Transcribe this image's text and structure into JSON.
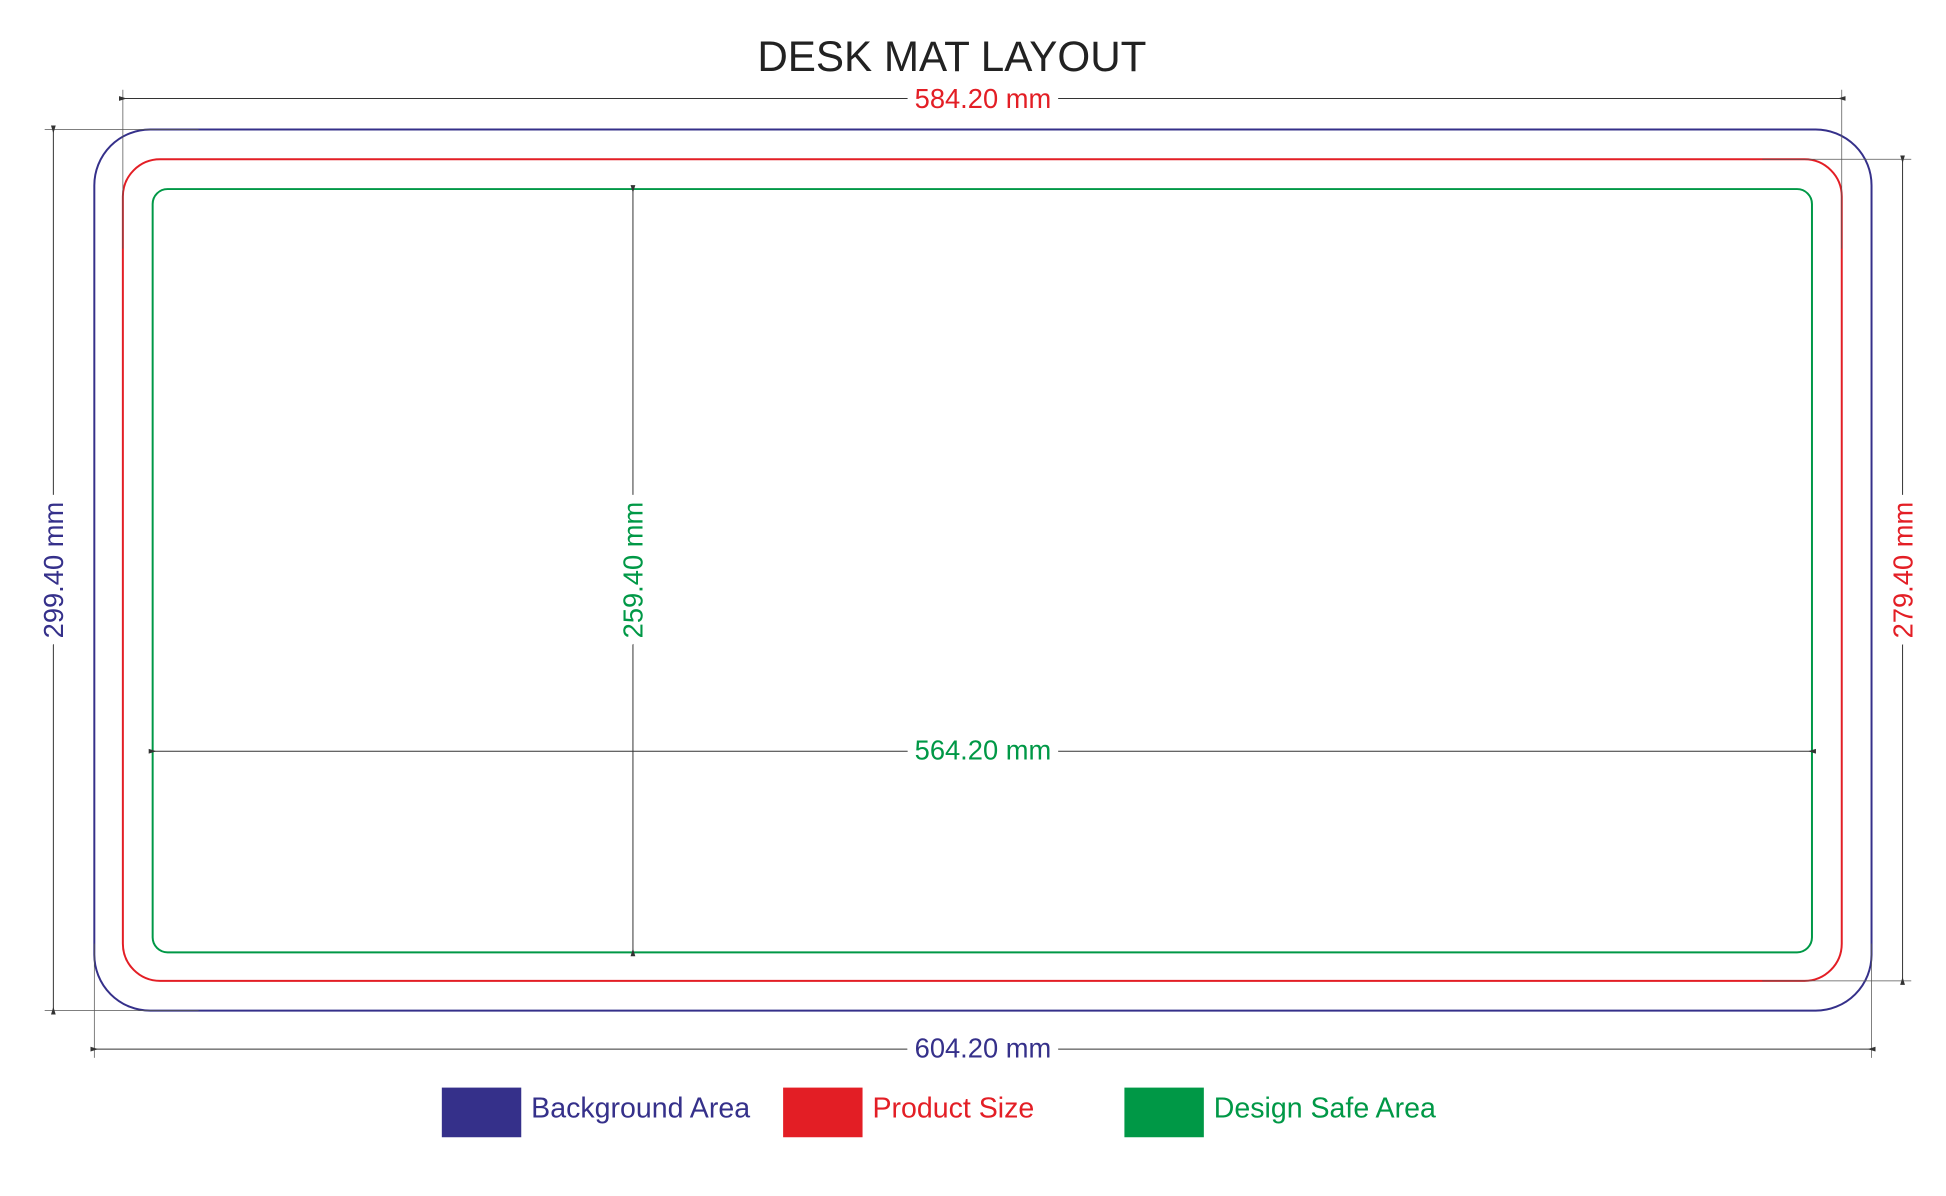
{
  "title": "DESK MAT LAYOUT",
  "dimensions": {
    "top": "584.20 mm",
    "bottom": "604.20 mm",
    "left": "299.40 mm",
    "right": "279.40 mm",
    "inner_height": "259.40 mm",
    "inner_width": "564.20 mm"
  },
  "legend": [
    {
      "label": "Background Area",
      "color": "#35308a"
    },
    {
      "label": "Product Size",
      "color": "#e31e25"
    },
    {
      "label": "Design Safe Area",
      "color": "#009846"
    }
  ]
}
